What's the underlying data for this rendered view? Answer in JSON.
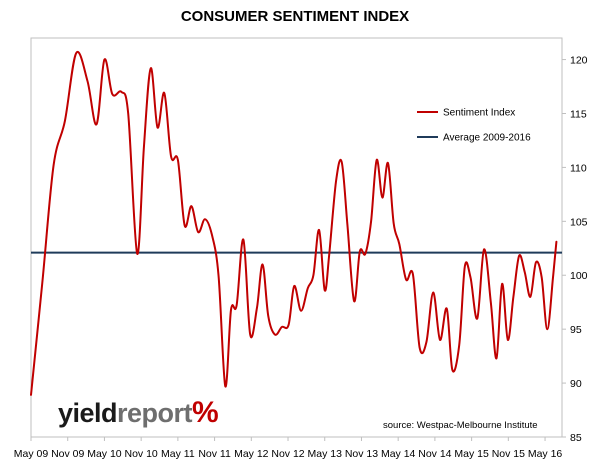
{
  "chart_data": {
    "type": "line",
    "title": "CONSUMER SENTIMENT INDEX",
    "xlabel": "",
    "ylabel": "",
    "x_tick_labels": [
      "May 09",
      "Nov 09",
      "May 10",
      "Nov 10",
      "May 11",
      "Nov 11",
      "May 12",
      "Nov 12",
      "May 13",
      "Nov 13",
      "May 14",
      "Nov 14",
      "May 15",
      "Nov 15",
      "May 16"
    ],
    "ylim": [
      85,
      122
    ],
    "y_ticks": [
      85,
      90,
      95,
      100,
      105,
      110,
      115,
      120
    ],
    "y_axis_position": "right",
    "grid": false,
    "legend_position": "top-right",
    "series": [
      {
        "name": "Sentiment Index",
        "color": "#c00000",
        "points": [
          [
            0.0,
            88.9
          ],
          [
            1.0,
            99.3
          ],
          [
            2.0,
            110.2
          ],
          [
            3.0,
            114.3
          ],
          [
            4.0,
            120.6
          ],
          [
            5.0,
            118.0
          ],
          [
            5.8,
            114.0
          ],
          [
            6.5,
            120.0
          ],
          [
            7.2,
            116.8
          ],
          [
            8.0,
            117.0
          ],
          [
            8.6,
            115.0
          ],
          [
            9.4,
            102.0
          ],
          [
            10.0,
            112.0
          ],
          [
            10.6,
            119.2
          ],
          [
            11.2,
            113.7
          ],
          [
            11.8,
            116.9
          ],
          [
            12.4,
            111.0
          ],
          [
            13.0,
            110.7
          ],
          [
            13.6,
            104.6
          ],
          [
            14.2,
            106.4
          ],
          [
            14.8,
            104.0
          ],
          [
            15.4,
            105.2
          ],
          [
            16.0,
            103.8
          ],
          [
            16.6,
            100.0
          ],
          [
            17.2,
            89.7
          ],
          [
            17.7,
            96.8
          ],
          [
            18.2,
            97.2
          ],
          [
            18.8,
            103.3
          ],
          [
            19.4,
            94.5
          ],
          [
            20.0,
            97.0
          ],
          [
            20.5,
            101.0
          ],
          [
            21.0,
            96.2
          ],
          [
            21.6,
            94.5
          ],
          [
            22.2,
            95.2
          ],
          [
            22.8,
            95.4
          ],
          [
            23.3,
            99.0
          ],
          [
            23.9,
            96.7
          ],
          [
            24.5,
            98.8
          ],
          [
            25.0,
            100.0
          ],
          [
            25.5,
            104.2
          ],
          [
            26.0,
            98.6
          ],
          [
            26.4,
            102.0
          ],
          [
            27.0,
            108.7
          ],
          [
            27.5,
            110.5
          ],
          [
            28.0,
            104.8
          ],
          [
            28.6,
            97.6
          ],
          [
            29.1,
            102.2
          ],
          [
            29.6,
            102.0
          ],
          [
            30.1,
            105.0
          ],
          [
            30.6,
            110.7
          ],
          [
            31.1,
            107.2
          ],
          [
            31.6,
            110.4
          ],
          [
            32.1,
            104.8
          ],
          [
            32.6,
            102.9
          ],
          [
            33.2,
            99.6
          ],
          [
            33.8,
            100.1
          ],
          [
            34.4,
            93.3
          ],
          [
            35.0,
            93.8
          ],
          [
            35.6,
            98.4
          ],
          [
            36.2,
            94.0
          ],
          [
            36.8,
            96.9
          ],
          [
            37.3,
            91.2
          ],
          [
            37.9,
            93.5
          ],
          [
            38.4,
            100.8
          ],
          [
            38.9,
            99.8
          ],
          [
            39.5,
            96.0
          ],
          [
            40.1,
            102.4
          ],
          [
            40.7,
            97.5
          ],
          [
            41.2,
            92.3
          ],
          [
            41.7,
            99.2
          ],
          [
            42.2,
            94.0
          ],
          [
            42.7,
            98.0
          ],
          [
            43.2,
            101.8
          ],
          [
            43.7,
            100.3
          ],
          [
            44.2,
            98.0
          ],
          [
            44.7,
            101.2
          ],
          [
            45.2,
            99.8
          ],
          [
            45.7,
            95.0
          ],
          [
            46.2,
            99.8
          ],
          [
            46.5,
            103.1
          ]
        ]
      },
      {
        "name": "Average 2009-2016",
        "color": "#1f3b5a",
        "value": 102.1
      }
    ]
  },
  "source_text": "source: Westpac-Melbourne Institute",
  "logo": {
    "part1": "yield",
    "part2": "report",
    "part3": "%"
  }
}
